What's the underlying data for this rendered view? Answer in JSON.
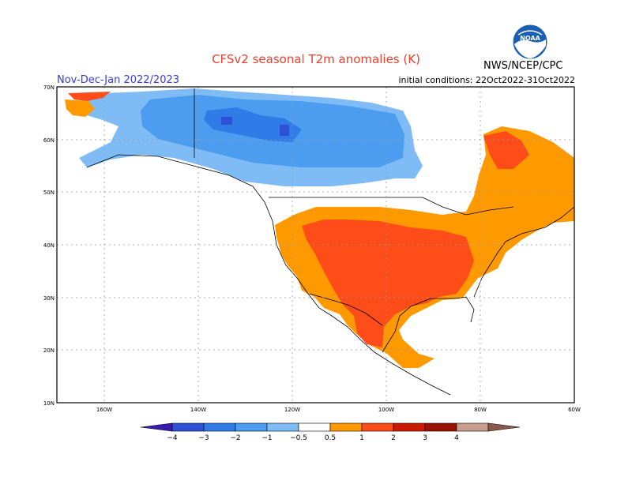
{
  "header": {
    "title": "CFSv2 seasonal T2m anomalies (K)",
    "period": "Nov-Dec-Jan 2022/2023",
    "initial_conditions": "initial conditions: 22Oct2022-31Oct2022",
    "agency": "NWS/NCEP/CPC",
    "logo_text": "NOAA"
  },
  "map": {
    "lat_labels": [
      "70N",
      "60N",
      "50N",
      "40N",
      "30N",
      "20N",
      "10N"
    ],
    "lon_labels": [
      "160W",
      "140W",
      "120W",
      "100W",
      "80W",
      "60W"
    ]
  },
  "legend": {
    "colors": [
      "#3b1ab0",
      "#2f51d6",
      "#2f7be8",
      "#4c9cf0",
      "#7fbcf6",
      "#ffffff",
      "#ff9900",
      "#ff4d1a",
      "#cc1a00",
      "#991100",
      "#c89e8e",
      "#8a5a4a"
    ],
    "labels": [
      "−4",
      "−3",
      "−2",
      "−1",
      "−0.5",
      "0.5",
      "1",
      "2",
      "3",
      "4"
    ]
  }
}
